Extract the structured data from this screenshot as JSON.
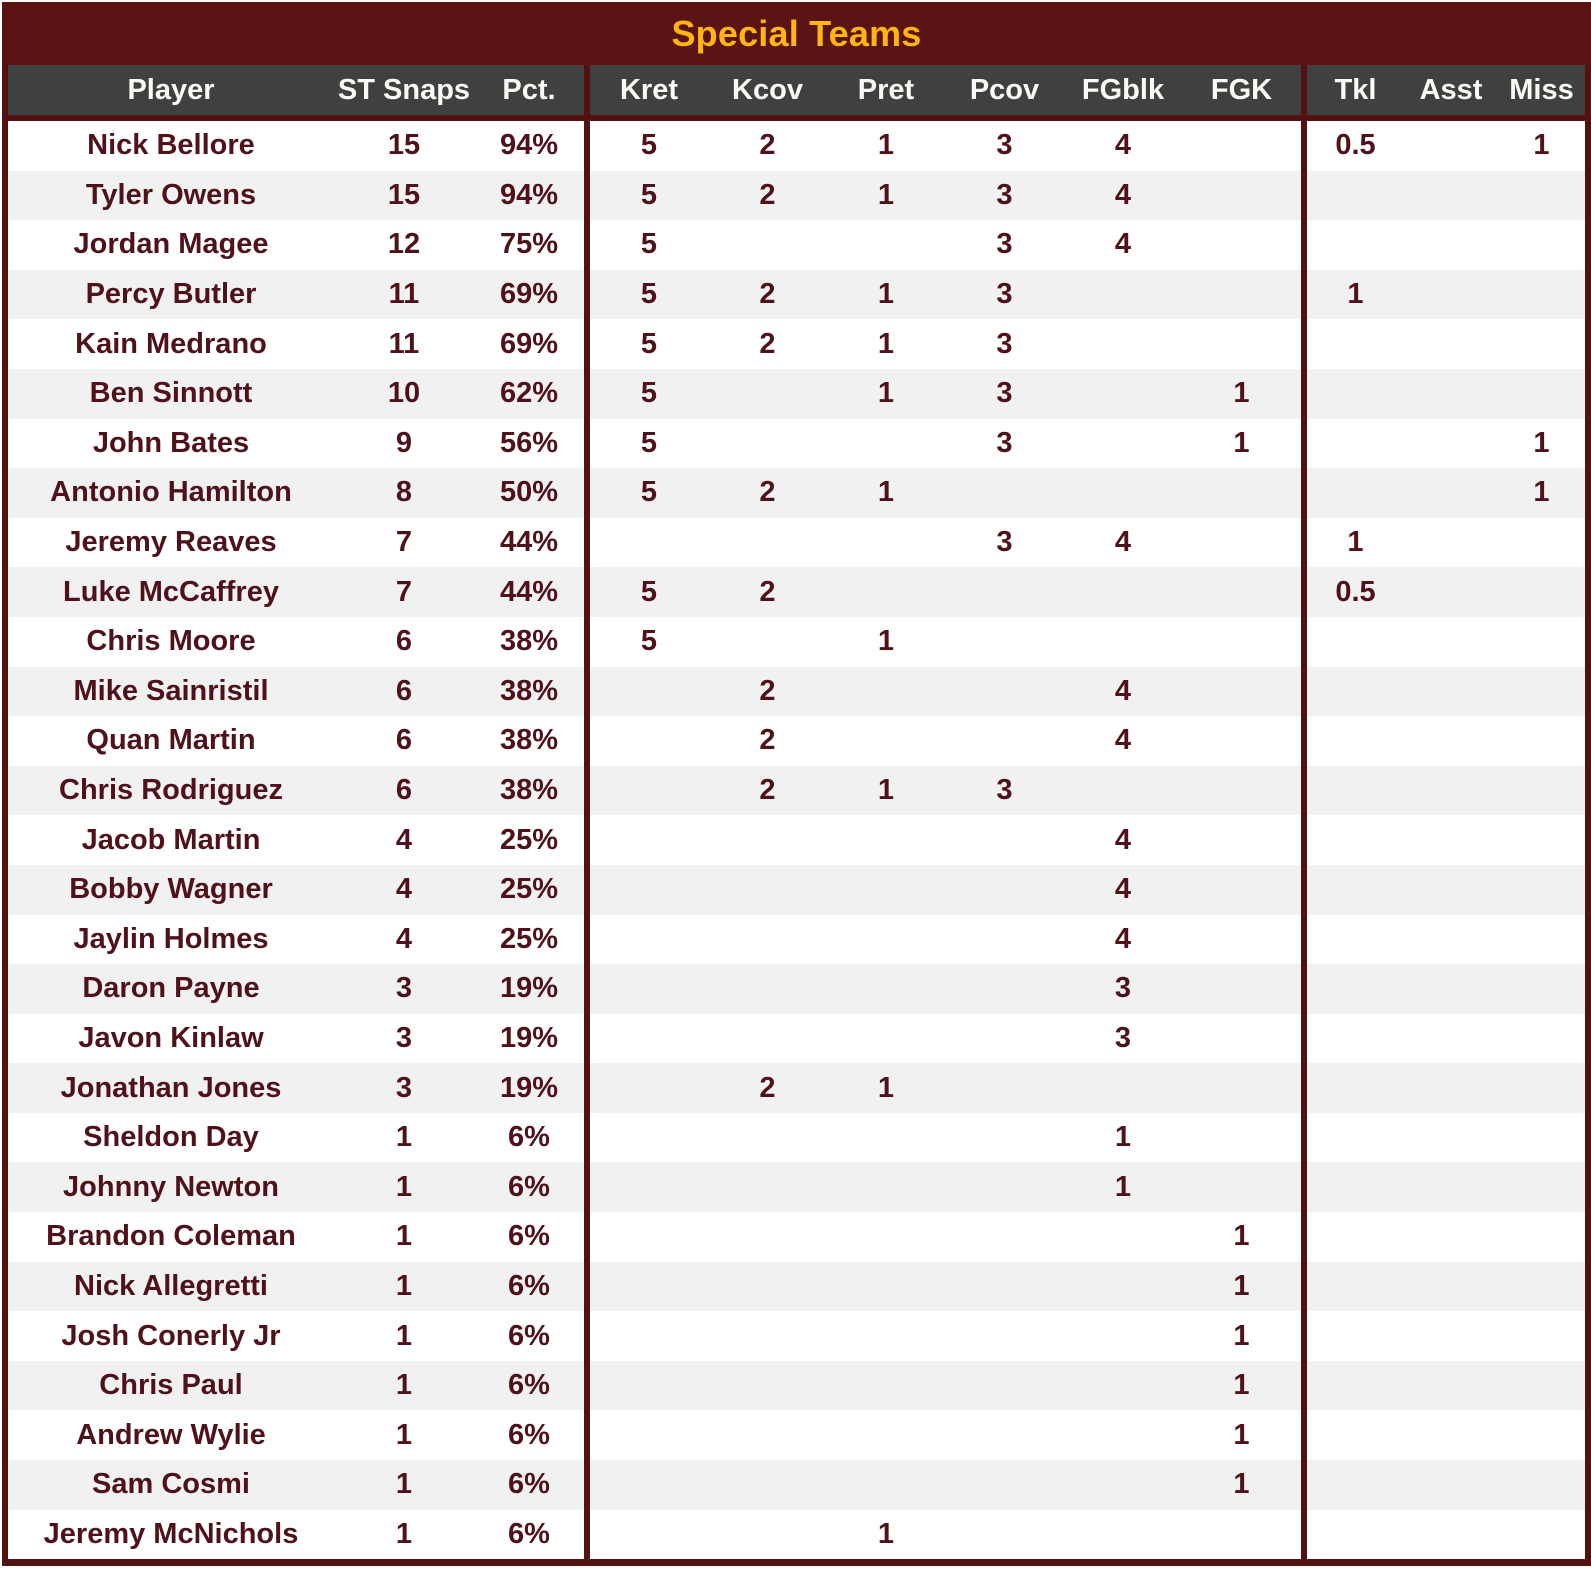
{
  "title": "Special Teams",
  "colors": {
    "burgundy": "#5A1414",
    "gold": "#FFB612",
    "header_gray": "#404040",
    "stripe": "#F2F1F1",
    "text_maroon": "#4F121A"
  },
  "chart_data": {
    "type": "table",
    "title": "Special Teams",
    "columns": [
      "Player",
      "ST Snaps",
      "Pct.",
      "Kret",
      "Kcov",
      "Pret",
      "Pcov",
      "FGblk",
      "FGK",
      "Tkl",
      "Asst",
      "Miss"
    ],
    "divider_after_columns": [
      "Pct.",
      "FGK"
    ],
    "striped_rows": true,
    "rows": [
      [
        "Nick Bellore",
        "15",
        "94%",
        "5",
        "2",
        "1",
        "3",
        "4",
        "",
        "0.5",
        "",
        "1"
      ],
      [
        "Tyler Owens",
        "15",
        "94%",
        "5",
        "2",
        "1",
        "3",
        "4",
        "",
        "",
        "",
        ""
      ],
      [
        "Jordan Magee",
        "12",
        "75%",
        "5",
        "",
        "",
        "3",
        "4",
        "",
        "",
        "",
        ""
      ],
      [
        "Percy Butler",
        "11",
        "69%",
        "5",
        "2",
        "1",
        "3",
        "",
        "",
        "1",
        "",
        ""
      ],
      [
        "Kain Medrano",
        "11",
        "69%",
        "5",
        "2",
        "1",
        "3",
        "",
        "",
        "",
        "",
        ""
      ],
      [
        "Ben Sinnott",
        "10",
        "62%",
        "5",
        "",
        "1",
        "3",
        "",
        "1",
        "",
        "",
        ""
      ],
      [
        "John Bates",
        "9",
        "56%",
        "5",
        "",
        "",
        "3",
        "",
        "1",
        "",
        "",
        "1"
      ],
      [
        "Antonio Hamilton",
        "8",
        "50%",
        "5",
        "2",
        "1",
        "",
        "",
        "",
        "",
        "",
        "1"
      ],
      [
        "Jeremy Reaves",
        "7",
        "44%",
        "",
        "",
        "",
        "3",
        "4",
        "",
        "1",
        "",
        ""
      ],
      [
        "Luke McCaffrey",
        "7",
        "44%",
        "5",
        "2",
        "",
        "",
        "",
        "",
        "0.5",
        "",
        ""
      ],
      [
        "Chris Moore",
        "6",
        "38%",
        "5",
        "",
        "1",
        "",
        "",
        "",
        "",
        "",
        ""
      ],
      [
        "Mike Sainristil",
        "6",
        "38%",
        "",
        "2",
        "",
        "",
        "4",
        "",
        "",
        "",
        ""
      ],
      [
        "Quan Martin",
        "6",
        "38%",
        "",
        "2",
        "",
        "",
        "4",
        "",
        "",
        "",
        ""
      ],
      [
        "Chris Rodriguez",
        "6",
        "38%",
        "",
        "2",
        "1",
        "3",
        "",
        "",
        "",
        "",
        ""
      ],
      [
        "Jacob Martin",
        "4",
        "25%",
        "",
        "",
        "",
        "",
        "4",
        "",
        "",
        "",
        ""
      ],
      [
        "Bobby Wagner",
        "4",
        "25%",
        "",
        "",
        "",
        "",
        "4",
        "",
        "",
        "",
        ""
      ],
      [
        "Jaylin Holmes",
        "4",
        "25%",
        "",
        "",
        "",
        "",
        "4",
        "",
        "",
        "",
        ""
      ],
      [
        "Daron Payne",
        "3",
        "19%",
        "",
        "",
        "",
        "",
        "3",
        "",
        "",
        "",
        ""
      ],
      [
        "Javon Kinlaw",
        "3",
        "19%",
        "",
        "",
        "",
        "",
        "3",
        "",
        "",
        "",
        ""
      ],
      [
        "Jonathan Jones",
        "3",
        "19%",
        "",
        "2",
        "1",
        "",
        "",
        "",
        "",
        "",
        ""
      ],
      [
        "Sheldon Day",
        "1",
        "6%",
        "",
        "",
        "",
        "",
        "1",
        "",
        "",
        "",
        ""
      ],
      [
        "Johnny Newton",
        "1",
        "6%",
        "",
        "",
        "",
        "",
        "1",
        "",
        "",
        "",
        ""
      ],
      [
        "Brandon Coleman",
        "1",
        "6%",
        "",
        "",
        "",
        "",
        "",
        "1",
        "",
        "",
        ""
      ],
      [
        "Nick Allegretti",
        "1",
        "6%",
        "",
        "",
        "",
        "",
        "",
        "1",
        "",
        "",
        ""
      ],
      [
        "Josh Conerly Jr",
        "1",
        "6%",
        "",
        "",
        "",
        "",
        "",
        "1",
        "",
        "",
        ""
      ],
      [
        "Chris Paul",
        "1",
        "6%",
        "",
        "",
        "",
        "",
        "",
        "1",
        "",
        "",
        ""
      ],
      [
        "Andrew Wylie",
        "1",
        "6%",
        "",
        "",
        "",
        "",
        "",
        "1",
        "",
        "",
        ""
      ],
      [
        "Sam Cosmi",
        "1",
        "6%",
        "",
        "",
        "",
        "",
        "",
        "1",
        "",
        "",
        ""
      ],
      [
        "Jeremy McNichols",
        "1",
        "6%",
        "",
        "",
        "1",
        "",
        "",
        "",
        "",
        "",
        ""
      ]
    ]
  }
}
